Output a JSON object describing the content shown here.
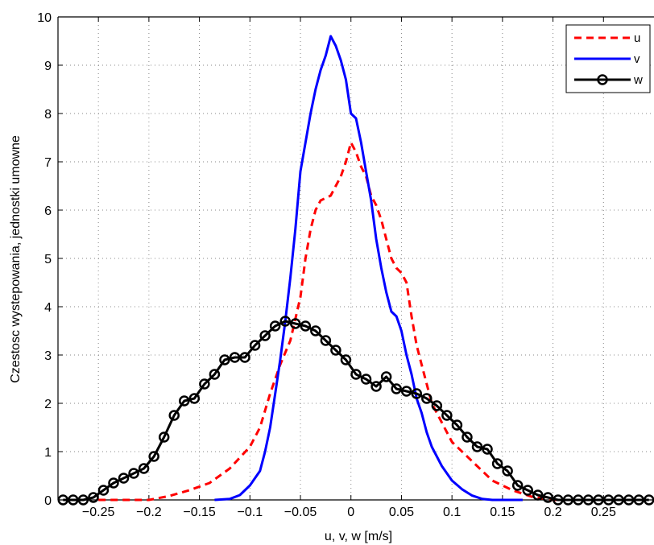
{
  "chart_data": {
    "type": "line",
    "xlabel": "u, v, w [m/s]",
    "ylabel": "Czestosc wystepowania, jednostki umowne",
    "xlim": [
      -0.29,
      0.3
    ],
    "ylim": [
      0,
      10
    ],
    "xticks": [
      -0.25,
      -0.2,
      -0.15,
      -0.1,
      -0.05,
      0,
      0.05,
      0.1,
      0.15,
      0.2,
      0.25
    ],
    "xtick_labels": [
      "−0.25",
      "−0.2",
      "−0.15",
      "−0.1",
      "−0.05",
      "0",
      "0.05",
      "0.1",
      "0.15",
      "0.2",
      "0.25"
    ],
    "yticks": [
      0,
      1,
      2,
      3,
      4,
      5,
      6,
      7,
      8,
      9,
      10
    ],
    "ytick_labels": [
      "0",
      "1",
      "2",
      "3",
      "4",
      "5",
      "6",
      "7",
      "8",
      "9",
      "10"
    ],
    "grid": true,
    "legend_position": "top-right",
    "series": [
      {
        "name": "u",
        "color": "#ff0000",
        "style": "dashed",
        "x": [
          -0.25,
          -0.2,
          -0.18,
          -0.16,
          -0.14,
          -0.12,
          -0.1,
          -0.09,
          -0.08,
          -0.07,
          -0.06,
          -0.05,
          -0.045,
          -0.04,
          -0.035,
          -0.03,
          -0.02,
          -0.015,
          -0.01,
          -0.005,
          0.0,
          0.005,
          0.01,
          0.015,
          0.02,
          0.025,
          0.03,
          0.035,
          0.04,
          0.045,
          0.05,
          0.055,
          0.06,
          0.065,
          0.07,
          0.075,
          0.08,
          0.09,
          0.1,
          0.12,
          0.14,
          0.16,
          0.18,
          0.2,
          0.22,
          0.25
        ],
        "values": [
          0.0,
          0.0,
          0.08,
          0.2,
          0.35,
          0.65,
          1.1,
          1.5,
          2.2,
          2.8,
          3.3,
          4.2,
          5.0,
          5.6,
          6.0,
          6.2,
          6.3,
          6.5,
          6.7,
          7.0,
          7.4,
          7.2,
          6.9,
          6.7,
          6.3,
          6.1,
          5.8,
          5.4,
          5.0,
          4.8,
          4.7,
          4.5,
          3.8,
          3.2,
          2.8,
          2.4,
          2.0,
          1.6,
          1.2,
          0.8,
          0.4,
          0.2,
          0.06,
          0.0,
          0.0,
          0.0
        ]
      },
      {
        "name": "v",
        "color": "#0000ff",
        "style": "solid",
        "x": [
          -0.135,
          -0.12,
          -0.11,
          -0.1,
          -0.09,
          -0.085,
          -0.08,
          -0.075,
          -0.07,
          -0.065,
          -0.06,
          -0.055,
          -0.05,
          -0.045,
          -0.04,
          -0.035,
          -0.03,
          -0.025,
          -0.02,
          -0.015,
          -0.01,
          -0.005,
          0.0,
          0.005,
          0.01,
          0.015,
          0.02,
          0.025,
          0.03,
          0.035,
          0.04,
          0.045,
          0.05,
          0.055,
          0.06,
          0.065,
          0.07,
          0.075,
          0.08,
          0.09,
          0.1,
          0.11,
          0.12,
          0.13,
          0.14,
          0.15,
          0.17
        ],
        "values": [
          0.0,
          0.02,
          0.1,
          0.3,
          0.6,
          1.0,
          1.5,
          2.2,
          2.9,
          3.7,
          4.6,
          5.6,
          6.8,
          7.4,
          8.0,
          8.5,
          8.9,
          9.2,
          9.6,
          9.4,
          9.1,
          8.7,
          8.0,
          7.9,
          7.4,
          6.8,
          6.2,
          5.4,
          4.8,
          4.3,
          3.9,
          3.8,
          3.5,
          3.0,
          2.6,
          2.1,
          1.8,
          1.4,
          1.1,
          0.7,
          0.4,
          0.22,
          0.09,
          0.02,
          0.0,
          0.0,
          0.0
        ]
      },
      {
        "name": "w",
        "color": "#000000",
        "style": "solid-circle-markers",
        "x": [
          -0.285,
          -0.275,
          -0.265,
          -0.255,
          -0.245,
          -0.235,
          -0.225,
          -0.215,
          -0.205,
          -0.195,
          -0.185,
          -0.175,
          -0.165,
          -0.155,
          -0.145,
          -0.135,
          -0.125,
          -0.115,
          -0.105,
          -0.095,
          -0.085,
          -0.075,
          -0.065,
          -0.055,
          -0.045,
          -0.035,
          -0.025,
          -0.015,
          -0.005,
          0.005,
          0.015,
          0.025,
          0.035,
          0.045,
          0.055,
          0.065,
          0.075,
          0.085,
          0.095,
          0.105,
          0.115,
          0.125,
          0.135,
          0.145,
          0.155,
          0.165,
          0.175,
          0.185,
          0.195,
          0.205,
          0.215,
          0.225,
          0.235,
          0.245,
          0.255,
          0.265,
          0.275,
          0.285,
          0.295
        ],
        "values": [
          0.0,
          0.0,
          0.0,
          0.05,
          0.2,
          0.35,
          0.45,
          0.55,
          0.65,
          0.9,
          1.3,
          1.75,
          2.05,
          2.1,
          2.4,
          2.6,
          2.9,
          2.95,
          2.95,
          3.2,
          3.4,
          3.6,
          3.7,
          3.65,
          3.6,
          3.5,
          3.3,
          3.1,
          2.9,
          2.6,
          2.5,
          2.35,
          2.55,
          2.3,
          2.25,
          2.2,
          2.1,
          1.95,
          1.75,
          1.55,
          1.3,
          1.1,
          1.05,
          0.75,
          0.6,
          0.3,
          0.2,
          0.1,
          0.05,
          0.0,
          0.0,
          0.0,
          0.0,
          0.0,
          0.0,
          0.0,
          0.0,
          0.0,
          0.0
        ]
      }
    ]
  }
}
